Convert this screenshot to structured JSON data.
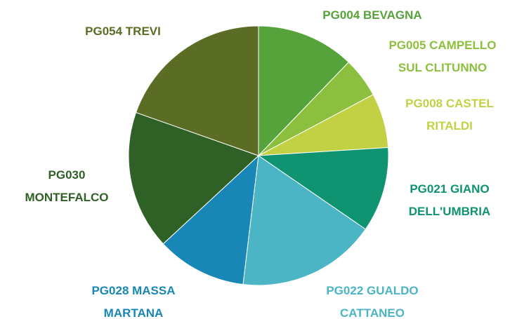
{
  "chart_data": {
    "type": "pie",
    "categories": [
      "PG004 BEVAGNA",
      "PG005 CAMPELLO SUL CLITUNNO",
      "PG008 CASTEL RITALDI",
      "PG021 GIANO DELL'UMBRIA",
      "PG022 GUALDO CATTANEO",
      "PG028 MASSA MARTANA",
      "PG030 MONTEFALCO",
      "PG054 TREVI"
    ],
    "values": [
      12.2,
      5.0,
      6.8,
      10.6,
      17.3,
      11.2,
      17.3,
      19.6
    ],
    "colors": [
      "#57a33b",
      "#8dbf3e",
      "#c2d143",
      "#0f9371",
      "#4bb5c5",
      "#1887b5",
      "#2f6026",
      "#5b6d24"
    ]
  }
}
